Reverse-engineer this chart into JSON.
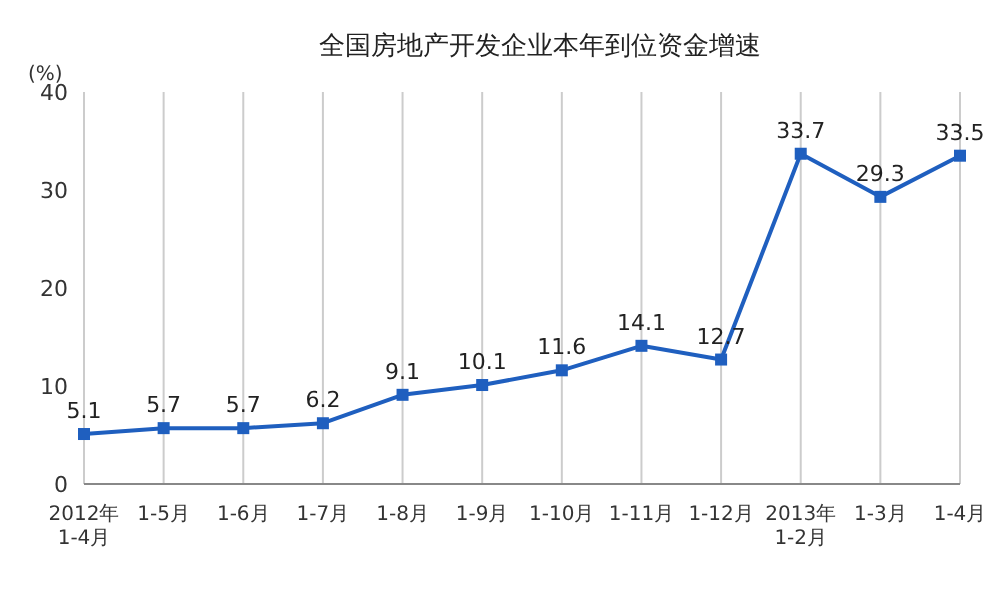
{
  "chart_data": {
    "type": "line",
    "title": "全国房地产开发企业本年到位资金增速",
    "ylabel": "(%)",
    "categories": [
      "2012年\n1-4月",
      "1-5月",
      "1-6月",
      "1-7月",
      "1-8月",
      "1-9月",
      "1-10月",
      "1-11月",
      "1-12月",
      "2013年\n1-2月",
      "1-3月",
      "1-4月"
    ],
    "series": [
      {
        "color": "#1f5fbf",
        "values": [
          5.1,
          5.7,
          5.7,
          6.2,
          9.1,
          10.1,
          11.6,
          14.1,
          12.7,
          33.7,
          29.3,
          33.5
        ]
      }
    ],
    "ylim": [
      0,
      40
    ],
    "yticks": [
      0,
      10,
      20,
      30,
      40
    ],
    "grid": "x",
    "data_labels": true,
    "marker": "square",
    "line_style": "solid",
    "legend": false
  }
}
